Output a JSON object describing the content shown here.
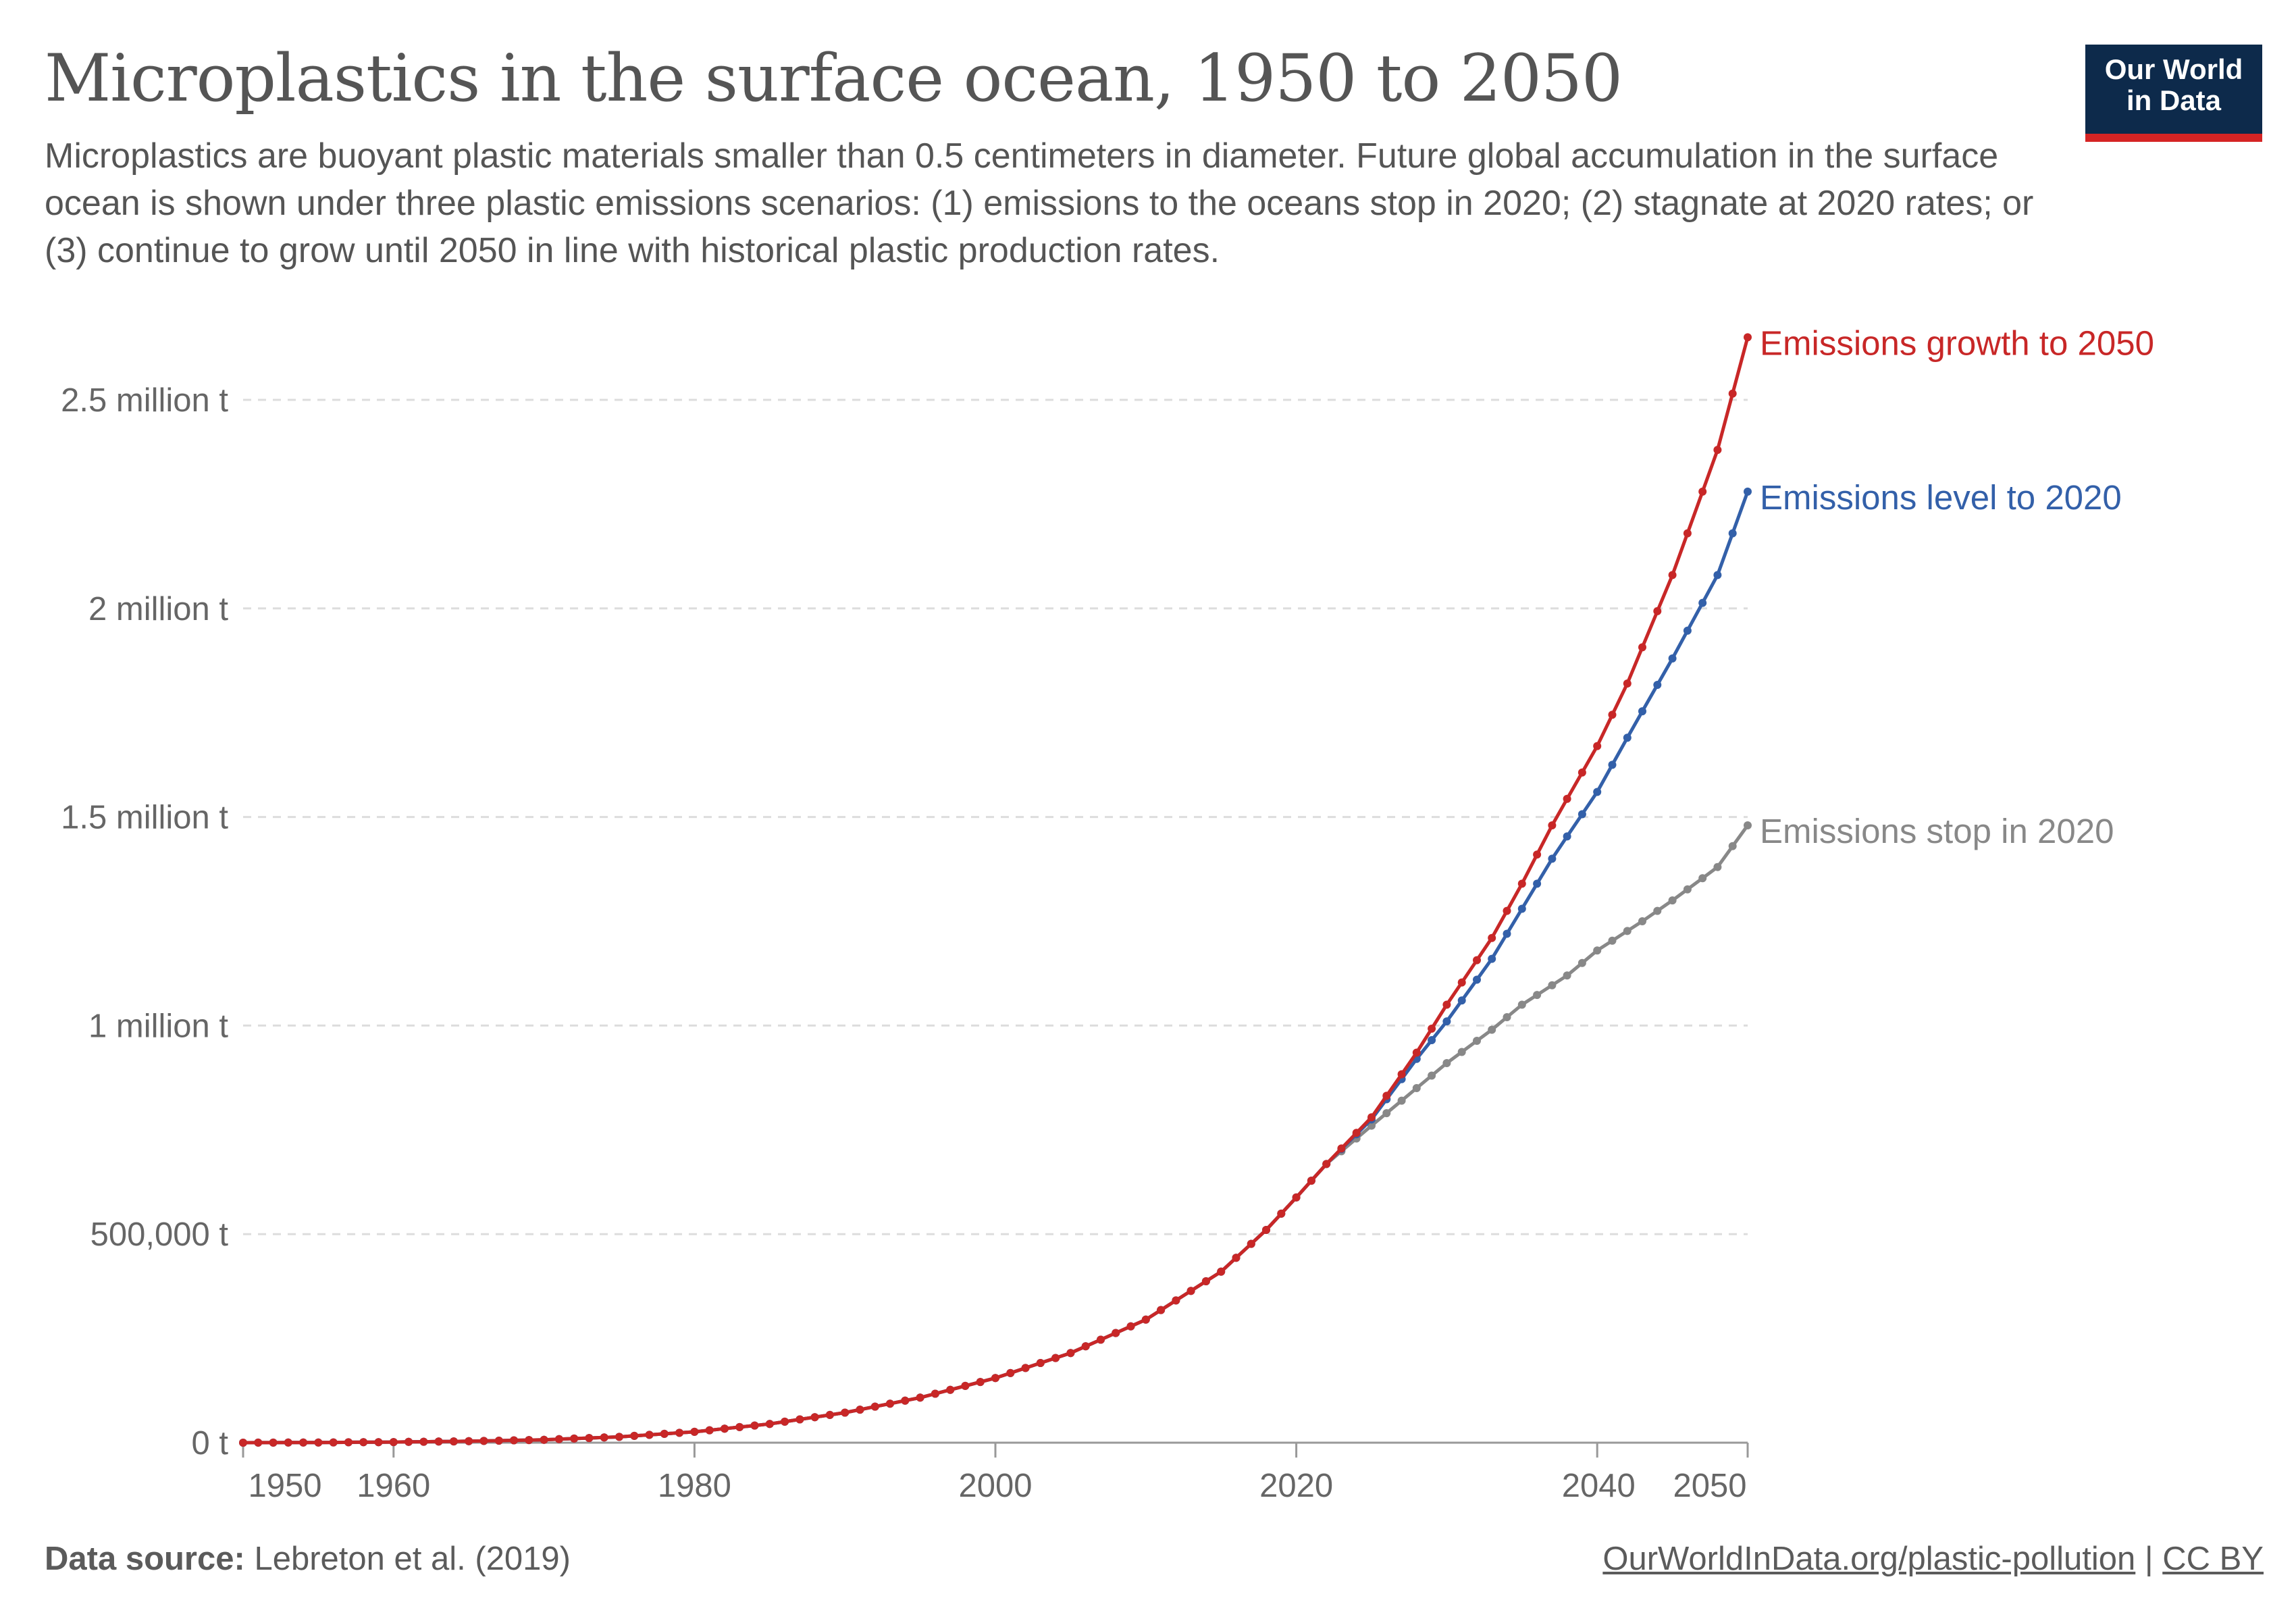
{
  "header": {
    "title": "Microplastics in the surface ocean, 1950 to 2050",
    "subtitle": "Microplastics are buoyant plastic materials smaller than 0.5 centimeters in diameter. Future global accumulation in the surface ocean is shown under three plastic emissions scenarios: (1) emissions to the oceans stop in 2020; (2) stagnate at 2020 rates; or (3) continue to grow until 2050 in line with historical plastic production rates."
  },
  "logo": {
    "line1": "Our World",
    "line2": "in Data"
  },
  "footer": {
    "source_label": "Data source:",
    "source_text": "Lebreton et al. (2019)",
    "link_text": "OurWorldInData.org/plastic-pollution",
    "separator": "|",
    "license": "CC BY"
  },
  "chart_data": {
    "type": "line",
    "x_range": [
      1950,
      2050
    ],
    "ylim": [
      0,
      2650000
    ],
    "y_ticks": [
      {
        "value": 0,
        "label": "0 t"
      },
      {
        "value": 500000,
        "label": "500,000 t"
      },
      {
        "value": 1000000,
        "label": "1 million t"
      },
      {
        "value": 1500000,
        "label": "1.5 million t"
      },
      {
        "value": 2000000,
        "label": "2 million t"
      },
      {
        "value": 2500000,
        "label": "2.5 million t"
      }
    ],
    "x_ticks": [
      {
        "value": 1950,
        "label": "1950"
      },
      {
        "value": 1960,
        "label": "1960"
      },
      {
        "value": 1980,
        "label": "1980"
      },
      {
        "value": 2000,
        "label": "2000"
      },
      {
        "value": 2020,
        "label": "2020"
      },
      {
        "value": 2040,
        "label": "2040"
      },
      {
        "value": 2050,
        "label": "2050"
      }
    ],
    "grid": "horizontal dashed",
    "legend": "inline labels at line ends (right)",
    "series": [
      {
        "name": "Emissions stop in 2020",
        "color": "#888888",
        "points": [
          [
            1950,
            0
          ],
          [
            1955,
            500
          ],
          [
            1960,
            1500
          ],
          [
            1965,
            3500
          ],
          [
            1970,
            7000
          ],
          [
            1975,
            14000
          ],
          [
            1980,
            26000
          ],
          [
            1985,
            45000
          ],
          [
            1990,
            72000
          ],
          [
            1995,
            108000
          ],
          [
            2000,
            155000
          ],
          [
            2005,
            215000
          ],
          [
            2010,
            295000
          ],
          [
            2015,
            410000
          ],
          [
            2018,
            510000
          ],
          [
            2020,
            588000
          ],
          [
            2022,
            668000
          ],
          [
            2025,
            760000
          ],
          [
            2028,
            850000
          ],
          [
            2030,
            910000
          ],
          [
            2033,
            990000
          ],
          [
            2035,
            1050000
          ],
          [
            2038,
            1120000
          ],
          [
            2040,
            1180000
          ],
          [
            2043,
            1250000
          ],
          [
            2045,
            1300000
          ],
          [
            2048,
            1380000
          ],
          [
            2050,
            1480000
          ]
        ]
      },
      {
        "name": "Emissions level to 2020",
        "color": "#3360a9",
        "points": [
          [
            1950,
            0
          ],
          [
            1955,
            500
          ],
          [
            1960,
            1500
          ],
          [
            1965,
            3500
          ],
          [
            1970,
            7000
          ],
          [
            1975,
            14000
          ],
          [
            1980,
            26000
          ],
          [
            1985,
            45000
          ],
          [
            1990,
            72000
          ],
          [
            1995,
            108000
          ],
          [
            2000,
            155000
          ],
          [
            2005,
            215000
          ],
          [
            2010,
            295000
          ],
          [
            2015,
            410000
          ],
          [
            2018,
            510000
          ],
          [
            2020,
            588000
          ],
          [
            2022,
            668000
          ],
          [
            2025,
            775000
          ],
          [
            2028,
            920000
          ],
          [
            2030,
            1010000
          ],
          [
            2033,
            1160000
          ],
          [
            2035,
            1280000
          ],
          [
            2037,
            1400000
          ],
          [
            2040,
            1560000
          ],
          [
            2042,
            1690000
          ],
          [
            2045,
            1880000
          ],
          [
            2048,
            2080000
          ],
          [
            2050,
            2280000
          ]
        ]
      },
      {
        "name": "Emissions growth to 2050",
        "color": "#c82727",
        "points": [
          [
            1950,
            0
          ],
          [
            1955,
            500
          ],
          [
            1960,
            1500
          ],
          [
            1965,
            3500
          ],
          [
            1970,
            7000
          ],
          [
            1975,
            14000
          ],
          [
            1980,
            26000
          ],
          [
            1985,
            45000
          ],
          [
            1990,
            72000
          ],
          [
            1995,
            108000
          ],
          [
            2000,
            155000
          ],
          [
            2005,
            215000
          ],
          [
            2010,
            295000
          ],
          [
            2015,
            410000
          ],
          [
            2018,
            510000
          ],
          [
            2020,
            588000
          ],
          [
            2022,
            668000
          ],
          [
            2025,
            780000
          ],
          [
            2028,
            935000
          ],
          [
            2030,
            1050000
          ],
          [
            2033,
            1210000
          ],
          [
            2035,
            1340000
          ],
          [
            2037,
            1480000
          ],
          [
            2040,
            1670000
          ],
          [
            2042,
            1820000
          ],
          [
            2045,
            2080000
          ],
          [
            2048,
            2380000
          ],
          [
            2050,
            2650000
          ]
        ]
      }
    ]
  }
}
